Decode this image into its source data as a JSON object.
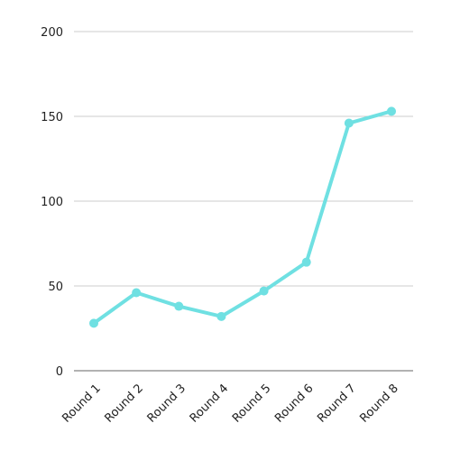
{
  "chart_data": {
    "type": "line",
    "title": "",
    "xlabel": "",
    "ylabel": "",
    "categories": [
      "Round 1",
      "Round 2",
      "Round 3",
      "Round 4",
      "Round 5",
      "Round 6",
      "Round 7",
      "Round 8"
    ],
    "series": [
      {
        "values": [
          28,
          46,
          38,
          32,
          47,
          64,
          146,
          153
        ],
        "color": "#6fe0e2"
      }
    ],
    "ylim": [
      0,
      200
    ],
    "yticks": [
      0,
      50,
      100,
      150,
      200
    ],
    "ytick_labels": [
      "0",
      "50",
      "100",
      "150",
      "200"
    ],
    "grid": "horizontal",
    "legend": "none",
    "colors": {
      "line": "#6fe0e2",
      "grid": "#cccccc",
      "axis": "#999999",
      "text": "#222222"
    }
  }
}
